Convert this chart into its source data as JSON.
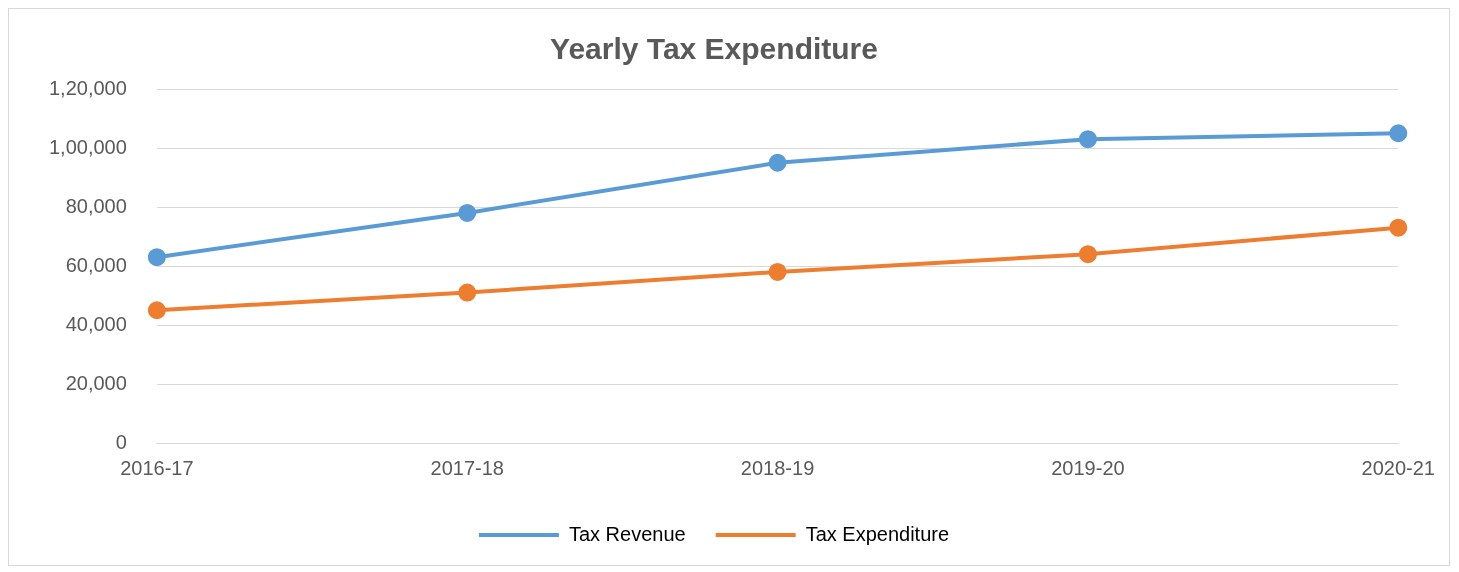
{
  "chart_data": {
    "type": "line",
    "title": "Yearly Tax Expenditure",
    "categories": [
      "2016-17",
      "2017-18",
      "2018-19",
      "2019-20",
      "2020-21"
    ],
    "series": [
      {
        "name": "Tax Revenue",
        "color": "#5b9bd5",
        "values": [
          63000,
          78000,
          95000,
          103000,
          105000
        ]
      },
      {
        "name": "Tax Expenditure",
        "color": "#ed7d31",
        "values": [
          45000,
          51000,
          58000,
          64000,
          73000
        ]
      }
    ],
    "ylim": [
      0,
      120000
    ],
    "yticks": [
      {
        "value": 0,
        "label": "0"
      },
      {
        "value": 20000,
        "label": "20,000"
      },
      {
        "value": 40000,
        "label": "40,000"
      },
      {
        "value": 60000,
        "label": "60,000"
      },
      {
        "value": 80000,
        "label": "80,000"
      },
      {
        "value": 100000,
        "label": "1,00,000"
      },
      {
        "value": 120000,
        "label": "1,20,000"
      }
    ],
    "grid": "y",
    "legend": "bottom",
    "marker": "circle",
    "line_style": "solid"
  }
}
